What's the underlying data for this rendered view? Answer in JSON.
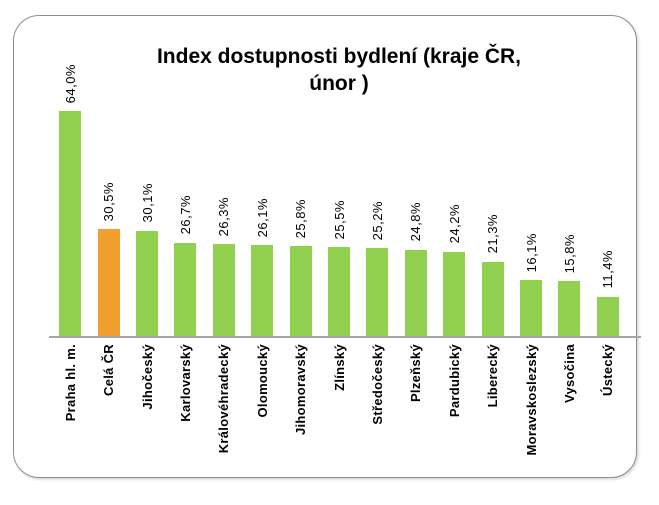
{
  "chart_data": {
    "type": "bar",
    "title": "Index dostupnosti bydlení (kraje ČR, únor )",
    "title_lines": [
      "Index dostupnosti bydlení (kraje ČR,",
      "únor )"
    ],
    "categories": [
      "Praha hl. m.",
      "Celá ČR",
      "Jihočeský",
      "Karlovarský",
      "Královéhradecký",
      "Olomoucký",
      "Jihomoravský",
      "Zlínský",
      "Středočeský",
      "Plzeňský",
      "Pardubický",
      "Liberecký",
      "Moravskoslezský",
      "Vysočina",
      "Ústecký"
    ],
    "values": [
      64.0,
      30.5,
      30.1,
      26.7,
      26.3,
      26.1,
      25.8,
      25.5,
      25.2,
      24.8,
      24.2,
      21.3,
      16.1,
      15.8,
      11.4
    ],
    "value_labels": [
      "64,0%",
      "30,5%",
      "30,1%",
      "26,7%",
      "26,3%",
      "26,1%",
      "25,8%",
      "25,5%",
      "25,2%",
      "24,8%",
      "24,2%",
      "21,3%",
      "16,1%",
      "15,8%",
      "11,4%"
    ],
    "xlabel": "",
    "ylabel": "",
    "ylim": [
      0,
      68
    ],
    "grid": false,
    "legend": "none",
    "highlight_index": 1,
    "colors": {
      "bar": "#92D050",
      "highlight": "#F0A02F",
      "axis_line": "#A6A6A6",
      "text": "#000000",
      "frame_border": "#8E8E8E"
    }
  }
}
